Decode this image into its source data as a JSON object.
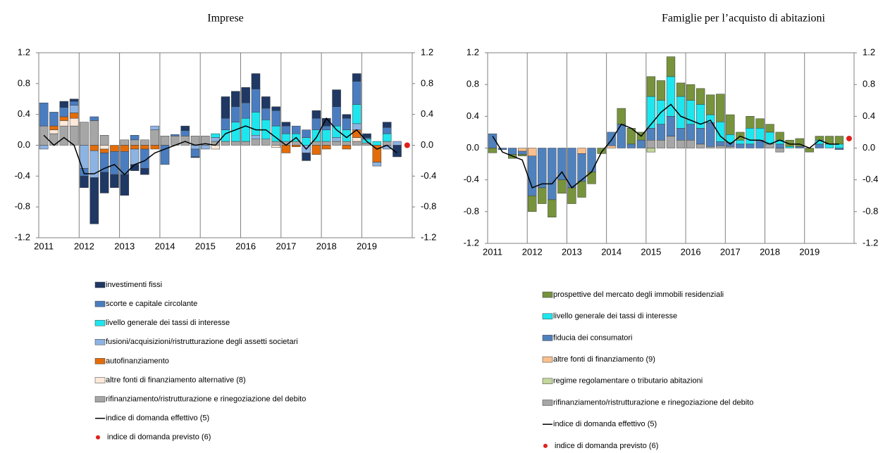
{
  "chart_data": [
    {
      "type": "bar",
      "stacked": true,
      "title": "Imprese",
      "categories": [
        "2011",
        null,
        null,
        null,
        "2012",
        null,
        null,
        null,
        "2013",
        null,
        null,
        null,
        "2014",
        null,
        null,
        null,
        "2015",
        null,
        null,
        null,
        "2016",
        null,
        null,
        null,
        "2017",
        null,
        null,
        null,
        "2018",
        null,
        null,
        null,
        "2019",
        null,
        null,
        null,
        null
      ],
      "ylim": [
        -1.2,
        1.2
      ],
      "yticks": [
        -1.2,
        -0.8,
        -0.4,
        {
          "value": 0,
          "label": "0.0"
        },
        0.4,
        0.8,
        1.2
      ],
      "y2lim": [
        -1.2,
        1.2
      ],
      "y2ticks": [
        -1.2,
        -0.8,
        -0.4,
        {
          "value": 0,
          "label": "0.0"
        },
        0.4,
        0.8,
        1.2
      ],
      "grid": "x",
      "series": [
        {
          "name": "investimenti fissi",
          "type": "bar",
          "color": "#1f3864",
          "values": [
            0,
            0,
            0.08,
            0.03,
            -0.15,
            -0.6,
            -0.27,
            -0.17,
            -0.27,
            -0.08,
            -0.08,
            0,
            0,
            0,
            0.06,
            -0.01,
            0,
            0,
            0.28,
            0.2,
            0.2,
            0.2,
            0.15,
            0.05,
            0.05,
            0,
            -0.1,
            0.1,
            0.1,
            0.22,
            0.05,
            0.1,
            0.05,
            0,
            0.07,
            -0.15,
            null
          ]
        },
        {
          "name": "scorte e capitale circolante",
          "type": "bar",
          "color": "#4a7dbf",
          "values": [
            0.3,
            0.18,
            0.12,
            0.05,
            -0.1,
            0.05,
            -0.25,
            -0.3,
            -0.3,
            0.06,
            -0.25,
            0,
            -0.25,
            0.02,
            0.07,
            -0.1,
            0,
            0,
            0.15,
            0.2,
            0.2,
            0.3,
            0.15,
            0.2,
            0.1,
            0.1,
            0.1,
            0.15,
            0.05,
            0.25,
            0.15,
            0.3,
            0.02,
            0,
            0.08,
            0,
            null
          ]
        },
        {
          "name": "livello generale dei tassi di interesse",
          "type": "bar",
          "color": "#1ee6ee",
          "values": [
            0,
            0,
            0,
            0,
            0,
            0,
            0,
            0,
            0,
            0,
            0,
            0,
            0,
            0,
            0,
            0,
            0,
            0.05,
            0.15,
            0.25,
            0.3,
            0.3,
            0.25,
            0.2,
            0.1,
            0.1,
            0.1,
            0.15,
            0.15,
            0.15,
            0.15,
            0.25,
            0.05,
            0.05,
            0.1,
            0,
            null
          ]
        },
        {
          "name": "fusioni/acquisizioni/ristrutturazione degli assetti societari",
          "type": "bar",
          "color": "#8db3e2",
          "values": [
            -0.05,
            0,
            0,
            0.1,
            -0.3,
            -0.35,
            0,
            0,
            0,
            -0.2,
            0,
            0.05,
            0,
            0,
            0,
            -0.05,
            -0.05,
            0.05,
            0,
            0,
            0,
            0.05,
            0,
            0,
            0,
            0,
            -0.1,
            0,
            0,
            0.05,
            0,
            0.08,
            0,
            -0.05,
            -0.05,
            0.05,
            null
          ]
        },
        {
          "name": "autofinanziamento",
          "type": "bar",
          "color": "#e36c09",
          "values": [
            0,
            0.05,
            0.05,
            0.07,
            0,
            -0.07,
            -0.05,
            -0.08,
            -0.08,
            -0.05,
            -0.05,
            -0.05,
            0,
            0,
            0,
            0,
            0,
            0,
            0,
            0,
            0,
            0,
            0,
            0,
            -0.1,
            -0.02,
            0,
            -0.12,
            -0.05,
            0,
            -0.05,
            0.1,
            0,
            -0.22,
            0,
            0,
            null
          ]
        },
        {
          "name": "altre fonti di finanziamento alternative (8)",
          "type": "bar",
          "color": "#fde9d9",
          "values": [
            0,
            0.05,
            0.07,
            0.1,
            0,
            0,
            -0.05,
            0,
            0,
            0,
            0,
            0,
            0,
            0,
            0,
            0,
            0,
            -0.05,
            0,
            0,
            0,
            0,
            0,
            -0.03,
            0,
            0,
            0,
            0,
            0,
            0,
            0,
            0.05,
            0,
            0,
            0,
            0,
            null
          ]
        },
        {
          "name": "rifinanziamento/ristrutturazione e rinegoziazione del debito",
          "type": "bar",
          "color": "#a6a6a6",
          "values": [
            0.25,
            0.15,
            0.25,
            0.25,
            0.3,
            0.32,
            0.13,
            0,
            0.07,
            0.07,
            0.07,
            0.2,
            0.12,
            0.12,
            0.12,
            0.12,
            0.12,
            0.05,
            0.05,
            0.05,
            0.05,
            0.08,
            0.08,
            0.05,
            0.05,
            0.05,
            0,
            0.05,
            0.05,
            0.05,
            0.05,
            0.05,
            0.03,
            0,
            0.05,
            0,
            null
          ]
        },
        {
          "name": "indice di domanda effettivo (5)",
          "type": "line",
          "color": "#000000",
          "values": [
            0.13,
            0,
            0.1,
            0,
            -0.37,
            -0.37,
            -0.3,
            -0.25,
            -0.38,
            -0.25,
            -0.2,
            -0.1,
            -0.05,
            0,
            0.05,
            0,
            0.02,
            0,
            0.15,
            0.2,
            0.25,
            0.2,
            0.2,
            0.1,
            0,
            0.1,
            -0.05,
            0.1,
            0.35,
            0.2,
            0.1,
            0.2,
            0.05,
            -0.05,
            0,
            -0.1,
            null
          ]
        },
        {
          "name": "indice di domanda previsto (6)",
          "type": "scatter",
          "color": "#e0201b",
          "values": [
            null,
            null,
            null,
            null,
            null,
            null,
            null,
            null,
            null,
            null,
            null,
            null,
            null,
            null,
            null,
            null,
            null,
            null,
            null,
            null,
            null,
            null,
            null,
            null,
            null,
            null,
            null,
            null,
            null,
            null,
            null,
            null,
            null,
            null,
            null,
            null,
            0
          ]
        }
      ]
    },
    {
      "type": "bar",
      "stacked": true,
      "title": "Famiglie per l’acquisto di abitazioni",
      "categories": [
        "2011",
        null,
        null,
        null,
        "2012",
        null,
        null,
        null,
        "2013",
        null,
        null,
        null,
        "2014",
        null,
        null,
        null,
        "2015",
        null,
        null,
        null,
        "2016",
        null,
        null,
        null,
        "2017",
        null,
        null,
        null,
        "2018",
        null,
        null,
        null,
        "2019",
        null,
        null,
        null,
        null
      ],
      "ylim": [
        -1.2,
        1.2
      ],
      "yticks": [
        -1.2,
        -0.8,
        -0.4,
        {
          "value": 0,
          "label": "0.0"
        },
        0.4,
        0.8,
        1.2
      ],
      "y2lim": [
        -1.2,
        1.2
      ],
      "y2ticks": [
        -1.2,
        -0.8,
        -0.4,
        {
          "value": 0,
          "label": "0.0"
        },
        0.4,
        0.8,
        1.2
      ],
      "grid": "x",
      "series": [
        {
          "name": "prospettive del mercato degli immobili residenziali",
          "type": "bar",
          "color": "#77933c",
          "values": [
            -0.06,
            0,
            -0.05,
            -0.02,
            -0.2,
            -0.2,
            -0.22,
            -0.17,
            -0.2,
            -0.2,
            -0.15,
            -0.07,
            0,
            0.2,
            0.2,
            0.1,
            0.25,
            0.25,
            0.25,
            0.17,
            0.2,
            0.2,
            0.25,
            0.35,
            0.25,
            0.1,
            0.15,
            0.12,
            0.1,
            0.1,
            0.08,
            0.1,
            -0.05,
            0.05,
            0.1,
            0.1,
            null
          ]
        },
        {
          "name": "livello generale dei tassi di interesse",
          "type": "bar",
          "color": "#1ee6ee",
          "values": [
            0,
            0,
            0,
            0,
            0,
            0,
            0,
            0,
            0,
            0,
            0,
            0,
            0,
            0,
            0,
            0,
            0.4,
            0.3,
            0.5,
            0.4,
            0.3,
            0.3,
            0.1,
            0.25,
            0.1,
            0.05,
            0.2,
            0.15,
            0.15,
            0.05,
            0.02,
            0,
            0,
            0.05,
            0.05,
            0.05,
            null
          ]
        },
        {
          "name": "fiducia dei consumatori",
          "type": "bar",
          "color": "#4f81bd",
          "values": [
            0.18,
            -0.02,
            -0.08,
            -0.04,
            -0.5,
            -0.5,
            -0.65,
            -0.4,
            -0.5,
            -0.35,
            -0.3,
            0,
            0.17,
            0.3,
            0.05,
            0.1,
            0.15,
            0.2,
            0.25,
            0.15,
            0.2,
            0.2,
            0.3,
            0.05,
            0.05,
            0.05,
            0.05,
            0.1,
            0,
            0.05,
            0,
            0.02,
            0,
            0.05,
            0,
            -0.02,
            null
          ]
        },
        {
          "name": "altre fonti di finanziamento  (9)",
          "type": "bar",
          "color": "#fac090",
          "values": [
            0,
            0,
            0,
            -0.04,
            -0.1,
            0,
            0,
            0,
            0,
            -0.07,
            0,
            0,
            0.03,
            0,
            0,
            0,
            0,
            0,
            0,
            0,
            0,
            0,
            0,
            0,
            0,
            0,
            0,
            0,
            0,
            0,
            0,
            0,
            0,
            0,
            0,
            0,
            null
          ]
        },
        {
          "name": "regime regolamentare o tributario abitazioni",
          "type": "bar",
          "color": "#c3d69b",
          "values": [
            0,
            0,
            0,
            0,
            0,
            0,
            0,
            0,
            0,
            0,
            0,
            0,
            0,
            0,
            0,
            0,
            -0.05,
            0,
            0,
            0,
            0,
            0,
            0,
            0,
            0,
            0,
            0,
            0,
            0,
            0,
            0,
            0,
            0,
            0,
            0,
            0,
            null
          ]
        },
        {
          "name": "rifinanziamento/ristrutturazione e rinegoziazione del debito",
          "type": "bar",
          "color": "#a6a6a6",
          "values": [
            0,
            0,
            0,
            0,
            0,
            0,
            0,
            0,
            0,
            0,
            0,
            0,
            0,
            0,
            0,
            0,
            0.1,
            0.1,
            0.15,
            0.1,
            0.1,
            0.05,
            0.02,
            0.03,
            0.02,
            0,
            0,
            0,
            0.05,
            -0.05,
            0,
            0,
            0,
            0,
            0,
            0,
            null
          ]
        },
        {
          "name": "indice di domanda effettivo (5)",
          "type": "line",
          "color": "#000000",
          "values": [
            0.15,
            -0.05,
            -0.1,
            -0.15,
            -0.5,
            -0.45,
            -0.45,
            -0.3,
            -0.5,
            -0.4,
            -0.3,
            -0.05,
            0.1,
            0.3,
            0.25,
            0.15,
            0.3,
            0.45,
            0.55,
            0.4,
            0.35,
            0.3,
            0.35,
            0.15,
            0.05,
            0.15,
            0.1,
            0.1,
            0.05,
            0.1,
            0.05,
            0.05,
            0,
            0.1,
            0.05,
            0.05,
            null
          ]
        },
        {
          "name": "indice di domanda previsto (6)",
          "type": "scatter",
          "color": "#e0201b",
          "values": [
            null,
            null,
            null,
            null,
            null,
            null,
            null,
            null,
            null,
            null,
            null,
            null,
            null,
            null,
            null,
            null,
            null,
            null,
            null,
            null,
            null,
            null,
            null,
            null,
            null,
            null,
            null,
            null,
            null,
            null,
            null,
            null,
            null,
            null,
            null,
            null,
            0.12
          ]
        }
      ]
    }
  ]
}
